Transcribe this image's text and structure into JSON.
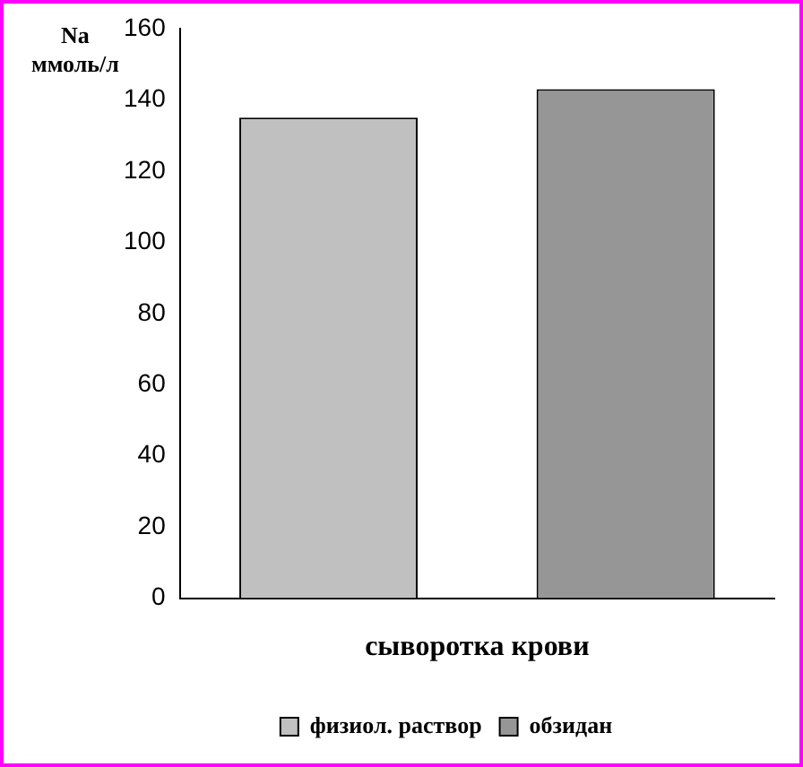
{
  "chart_data": {
    "type": "bar",
    "ylabel": "Na ммоль/л",
    "categories": [
      "сыворотка крови"
    ],
    "series": [
      {
        "name": "физиол. раствор",
        "color": "#c0c0c0",
        "values": [
          135
        ]
      },
      {
        "name": "обзидан",
        "color": "#969696",
        "values": [
          143
        ]
      }
    ],
    "ylim": [
      0,
      160
    ],
    "yticks": [
      0,
      20,
      40,
      60,
      80,
      100,
      120,
      140,
      160
    ],
    "grid": false,
    "legend": "bottom"
  }
}
